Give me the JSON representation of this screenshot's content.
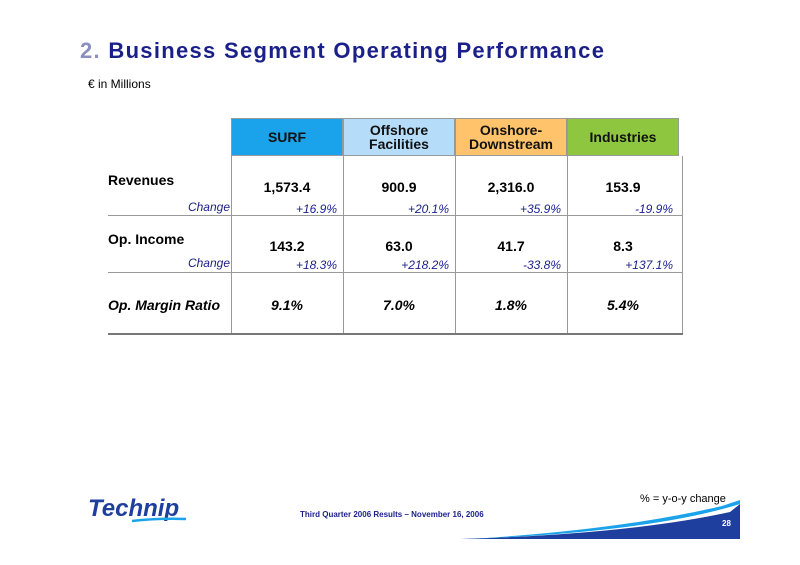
{
  "title": {
    "number": "2.",
    "text": "Business Segment Operating Performance"
  },
  "subtitle": "€ in Millions",
  "columns": [
    {
      "label_line1": "SURF",
      "label_line2": "",
      "color": "#1aa3ea"
    },
    {
      "label_line1": "Offshore",
      "label_line2": "Facilities",
      "color": "#b5dcf9"
    },
    {
      "label_line1": "Onshore-",
      "label_line2": "Downstream",
      "color": "#ffc46b"
    },
    {
      "label_line1": "Industries",
      "label_line2": "",
      "color": "#8ec63f"
    }
  ],
  "rows": {
    "revenues": {
      "label": "Revenues",
      "change_label": "Change",
      "values": [
        "1,573.4",
        "900.9",
        "2,316.0",
        "153.9"
      ],
      "changes": [
        "+16.9%",
        "+20.1%",
        "+35.9%",
        "-19.9%"
      ]
    },
    "op_income": {
      "label": "Op. Income",
      "change_label": "Change",
      "values": [
        "143.2",
        "63.0",
        "41.7",
        "8.3"
      ],
      "changes": [
        "+18.3%",
        "+218.2%",
        "-33.8%",
        "+137.1%"
      ]
    },
    "op_margin": {
      "label": "Op. Margin Ratio",
      "values": [
        "9.1%",
        "7.0%",
        "1.8%",
        "5.4%"
      ]
    }
  },
  "footer": {
    "logo_text": "Technip",
    "event": "Third Quarter 2006 Results – November 16, 2006",
    "note": "% = y-o-y change",
    "page_number": "28"
  },
  "colors": {
    "title": "#1a1f8a",
    "accent_blue": "#1a1f8a",
    "logo_blue": "#1f3f9f"
  }
}
